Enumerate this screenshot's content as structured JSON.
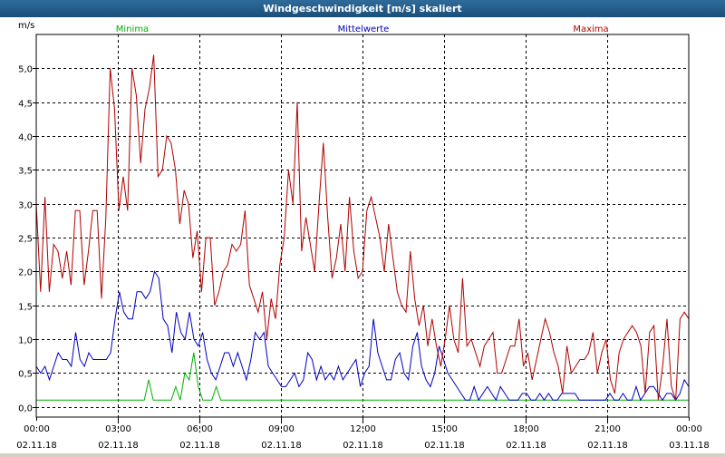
{
  "window": {
    "title": "Windgeschwindigkeit [m/s] skaliert"
  },
  "colors": {
    "min": "#00b000",
    "mean": "#0000c0",
    "max": "#b00000",
    "grid": "#000000",
    "title_bar": "#2a5f8f"
  },
  "chart_data": {
    "type": "line",
    "title": "Windgeschwindigkeit [m/s] skaliert",
    "ylabel": "m/s",
    "xlabel": "",
    "ylim": [
      -0.15,
      5.5
    ],
    "yticks": [
      "0,0",
      "0,5",
      "1,0",
      "1,5",
      "2,0",
      "2,5",
      "3,0",
      "3,5",
      "4,0",
      "4,5",
      "5,0"
    ],
    "ytick_values": [
      0,
      0.5,
      1.0,
      1.5,
      2.0,
      2.5,
      3.0,
      3.5,
      4.0,
      4.5,
      5.0
    ],
    "xlim_hours": [
      0,
      24
    ],
    "xticks": [
      {
        "time": "00:00",
        "date": "02.11.18"
      },
      {
        "time": "03:00",
        "date": "02.11.18"
      },
      {
        "time": "06:00",
        "date": "02.11.18"
      },
      {
        "time": "09:00",
        "date": "02.11.18"
      },
      {
        "time": "12:00",
        "date": "02.11.18"
      },
      {
        "time": "15:00",
        "date": "02.11.18"
      },
      {
        "time": "18:00",
        "date": "02.11.18"
      },
      {
        "time": "21:00",
        "date": "02.11.18"
      },
      {
        "time": "00:00",
        "date": "03.11.18"
      }
    ],
    "grid": true,
    "legend_position": "top",
    "series": [
      {
        "name": "Minima",
        "color": "#00b000",
        "values": [
          0.1,
          0.1,
          0.1,
          0.1,
          0.1,
          0.1,
          0.1,
          0.1,
          0.1,
          0.1,
          0.1,
          0.1,
          0.1,
          0.1,
          0.1,
          0.1,
          0.1,
          0.1,
          0.1,
          0.1,
          0.1,
          0.1,
          0.1,
          0.1,
          0.1,
          0.4,
          0.1,
          0.1,
          0.1,
          0.1,
          0.1,
          0.3,
          0.1,
          0.5,
          0.4,
          0.8,
          0.3,
          0.1,
          0.1,
          0.1,
          0.3,
          0.1,
          0.1,
          0.1,
          0.1,
          0.1,
          0.1,
          0.1,
          0.1,
          0.1,
          0.1,
          0.1,
          0.1,
          0.1,
          0.1,
          0.1,
          0.1,
          0.1,
          0.1,
          0.1,
          0.1,
          0.1,
          0.1,
          0.1,
          0.1,
          0.1,
          0.1,
          0.1,
          0.1,
          0.1,
          0.1,
          0.1,
          0.1,
          0.1,
          0.1,
          0.1,
          0.1,
          0.1,
          0.1,
          0.1,
          0.1,
          0.1,
          0.1,
          0.1,
          0.1,
          0.1,
          0.1,
          0.1,
          0.1,
          0.1,
          0.1,
          0.1,
          0.1,
          0.1,
          0.1,
          0.1,
          0.1,
          0.1,
          0.1,
          0.1,
          0.1,
          0.1,
          0.1,
          0.1,
          0.1,
          0.1,
          0.1,
          0.1,
          0.1,
          0.1,
          0.1,
          0.1,
          0.1,
          0.1,
          0.1,
          0.1,
          0.1,
          0.1,
          0.1,
          0.1,
          0.1,
          0.1,
          0.1,
          0.1,
          0.1,
          0.1,
          0.1,
          0.1,
          0.1,
          0.1,
          0.1,
          0.1,
          0.1,
          0.1,
          0.1,
          0.1,
          0.1,
          0.1,
          0.1,
          0.1,
          0.1,
          0.1,
          0.1,
          0.1,
          0.1,
          0.1
        ]
      },
      {
        "name": "Mittelwerte",
        "color": "#0000c0",
        "values": [
          0.6,
          0.5,
          0.6,
          0.4,
          0.6,
          0.8,
          0.7,
          0.7,
          0.6,
          1.1,
          0.7,
          0.6,
          0.8,
          0.7,
          0.7,
          0.7,
          0.7,
          0.8,
          1.3,
          1.7,
          1.4,
          1.3,
          1.3,
          1.7,
          1.7,
          1.6,
          1.7,
          2.0,
          1.9,
          1.3,
          1.2,
          0.8,
          1.4,
          1.1,
          1.0,
          1.4,
          1.0,
          0.9,
          1.1,
          0.7,
          0.5,
          0.4,
          0.6,
          0.8,
          0.8,
          0.6,
          0.8,
          0.6,
          0.4,
          0.7,
          1.1,
          1.0,
          1.1,
          0.6,
          0.5,
          0.4,
          0.3,
          0.3,
          0.4,
          0.5,
          0.3,
          0.4,
          0.8,
          0.7,
          0.4,
          0.6,
          0.4,
          0.5,
          0.4,
          0.6,
          0.4,
          0.5,
          0.6,
          0.7,
          0.3,
          0.5,
          0.6,
          1.3,
          0.8,
          0.6,
          0.4,
          0.4,
          0.7,
          0.8,
          0.5,
          0.4,
          0.9,
          1.1,
          0.6,
          0.4,
          0.3,
          0.5,
          0.9,
          0.7,
          0.5,
          0.4,
          0.3,
          0.2,
          0.1,
          0.1,
          0.3,
          0.1,
          0.2,
          0.3,
          0.2,
          0.1,
          0.3,
          0.2,
          0.1,
          0.1,
          0.1,
          0.2,
          0.2,
          0.1,
          0.1,
          0.2,
          0.1,
          0.2,
          0.1,
          0.1,
          0.2,
          0.2,
          0.2,
          0.2,
          0.1,
          0.1,
          0.1,
          0.1,
          0.1,
          0.1,
          0.1,
          0.2,
          0.1,
          0.1,
          0.2,
          0.1,
          0.1,
          0.3,
          0.1,
          0.2,
          0.3,
          0.3,
          0.2,
          0.1,
          0.2,
          0.2,
          0.1,
          0.2,
          0.4,
          0.3
        ]
      },
      {
        "name": "Maxima",
        "color": "#b00000",
        "values": [
          3.0,
          1.7,
          3.1,
          1.7,
          2.4,
          2.3,
          1.9,
          2.3,
          1.8,
          2.9,
          2.9,
          1.8,
          2.3,
          2.9,
          2.9,
          1.6,
          2.8,
          5.0,
          4.4,
          2.9,
          3.4,
          2.9,
          5.0,
          4.6,
          3.6,
          4.4,
          4.7,
          5.2,
          3.4,
          3.5,
          4.0,
          3.9,
          3.5,
          2.7,
          3.2,
          3.0,
          2.2,
          2.6,
          1.7,
          2.5,
          2.5,
          1.5,
          1.7,
          2.0,
          2.1,
          2.4,
          2.3,
          2.4,
          2.9,
          1.8,
          1.6,
          1.4,
          1.7,
          1.0,
          1.6,
          1.3,
          2.1,
          2.5,
          3.5,
          3.0,
          4.5,
          2.3,
          2.8,
          2.4,
          2.0,
          3.0,
          3.9,
          2.8,
          1.9,
          2.2,
          2.7,
          2.0,
          3.1,
          2.3,
          1.9,
          2.0,
          2.9,
          3.1,
          2.8,
          2.5,
          2.0,
          2.7,
          2.2,
          1.7,
          1.5,
          1.4,
          2.3,
          1.6,
          1.2,
          1.5,
          0.9,
          1.3,
          0.9,
          0.6,
          1.0,
          1.5,
          1.0,
          0.8,
          1.9,
          0.9,
          1.0,
          0.8,
          0.6,
          0.9,
          1.0,
          1.1,
          0.5,
          0.5,
          0.7,
          0.9,
          0.9,
          1.3,
          0.6,
          0.8,
          0.4,
          0.7,
          1.0,
          1.3,
          1.1,
          0.8,
          0.6,
          0.2,
          0.9,
          0.5,
          0.6,
          0.7,
          0.7,
          0.8,
          1.1,
          0.5,
          0.8,
          1.0,
          0.4,
          0.2,
          0.8,
          1.0,
          1.1,
          1.2,
          1.1,
          0.9,
          0.2,
          1.1,
          1.2,
          0.1,
          0.6,
          1.3,
          0.3,
          0.1,
          1.3,
          1.4,
          1.3
        ]
      }
    ]
  }
}
